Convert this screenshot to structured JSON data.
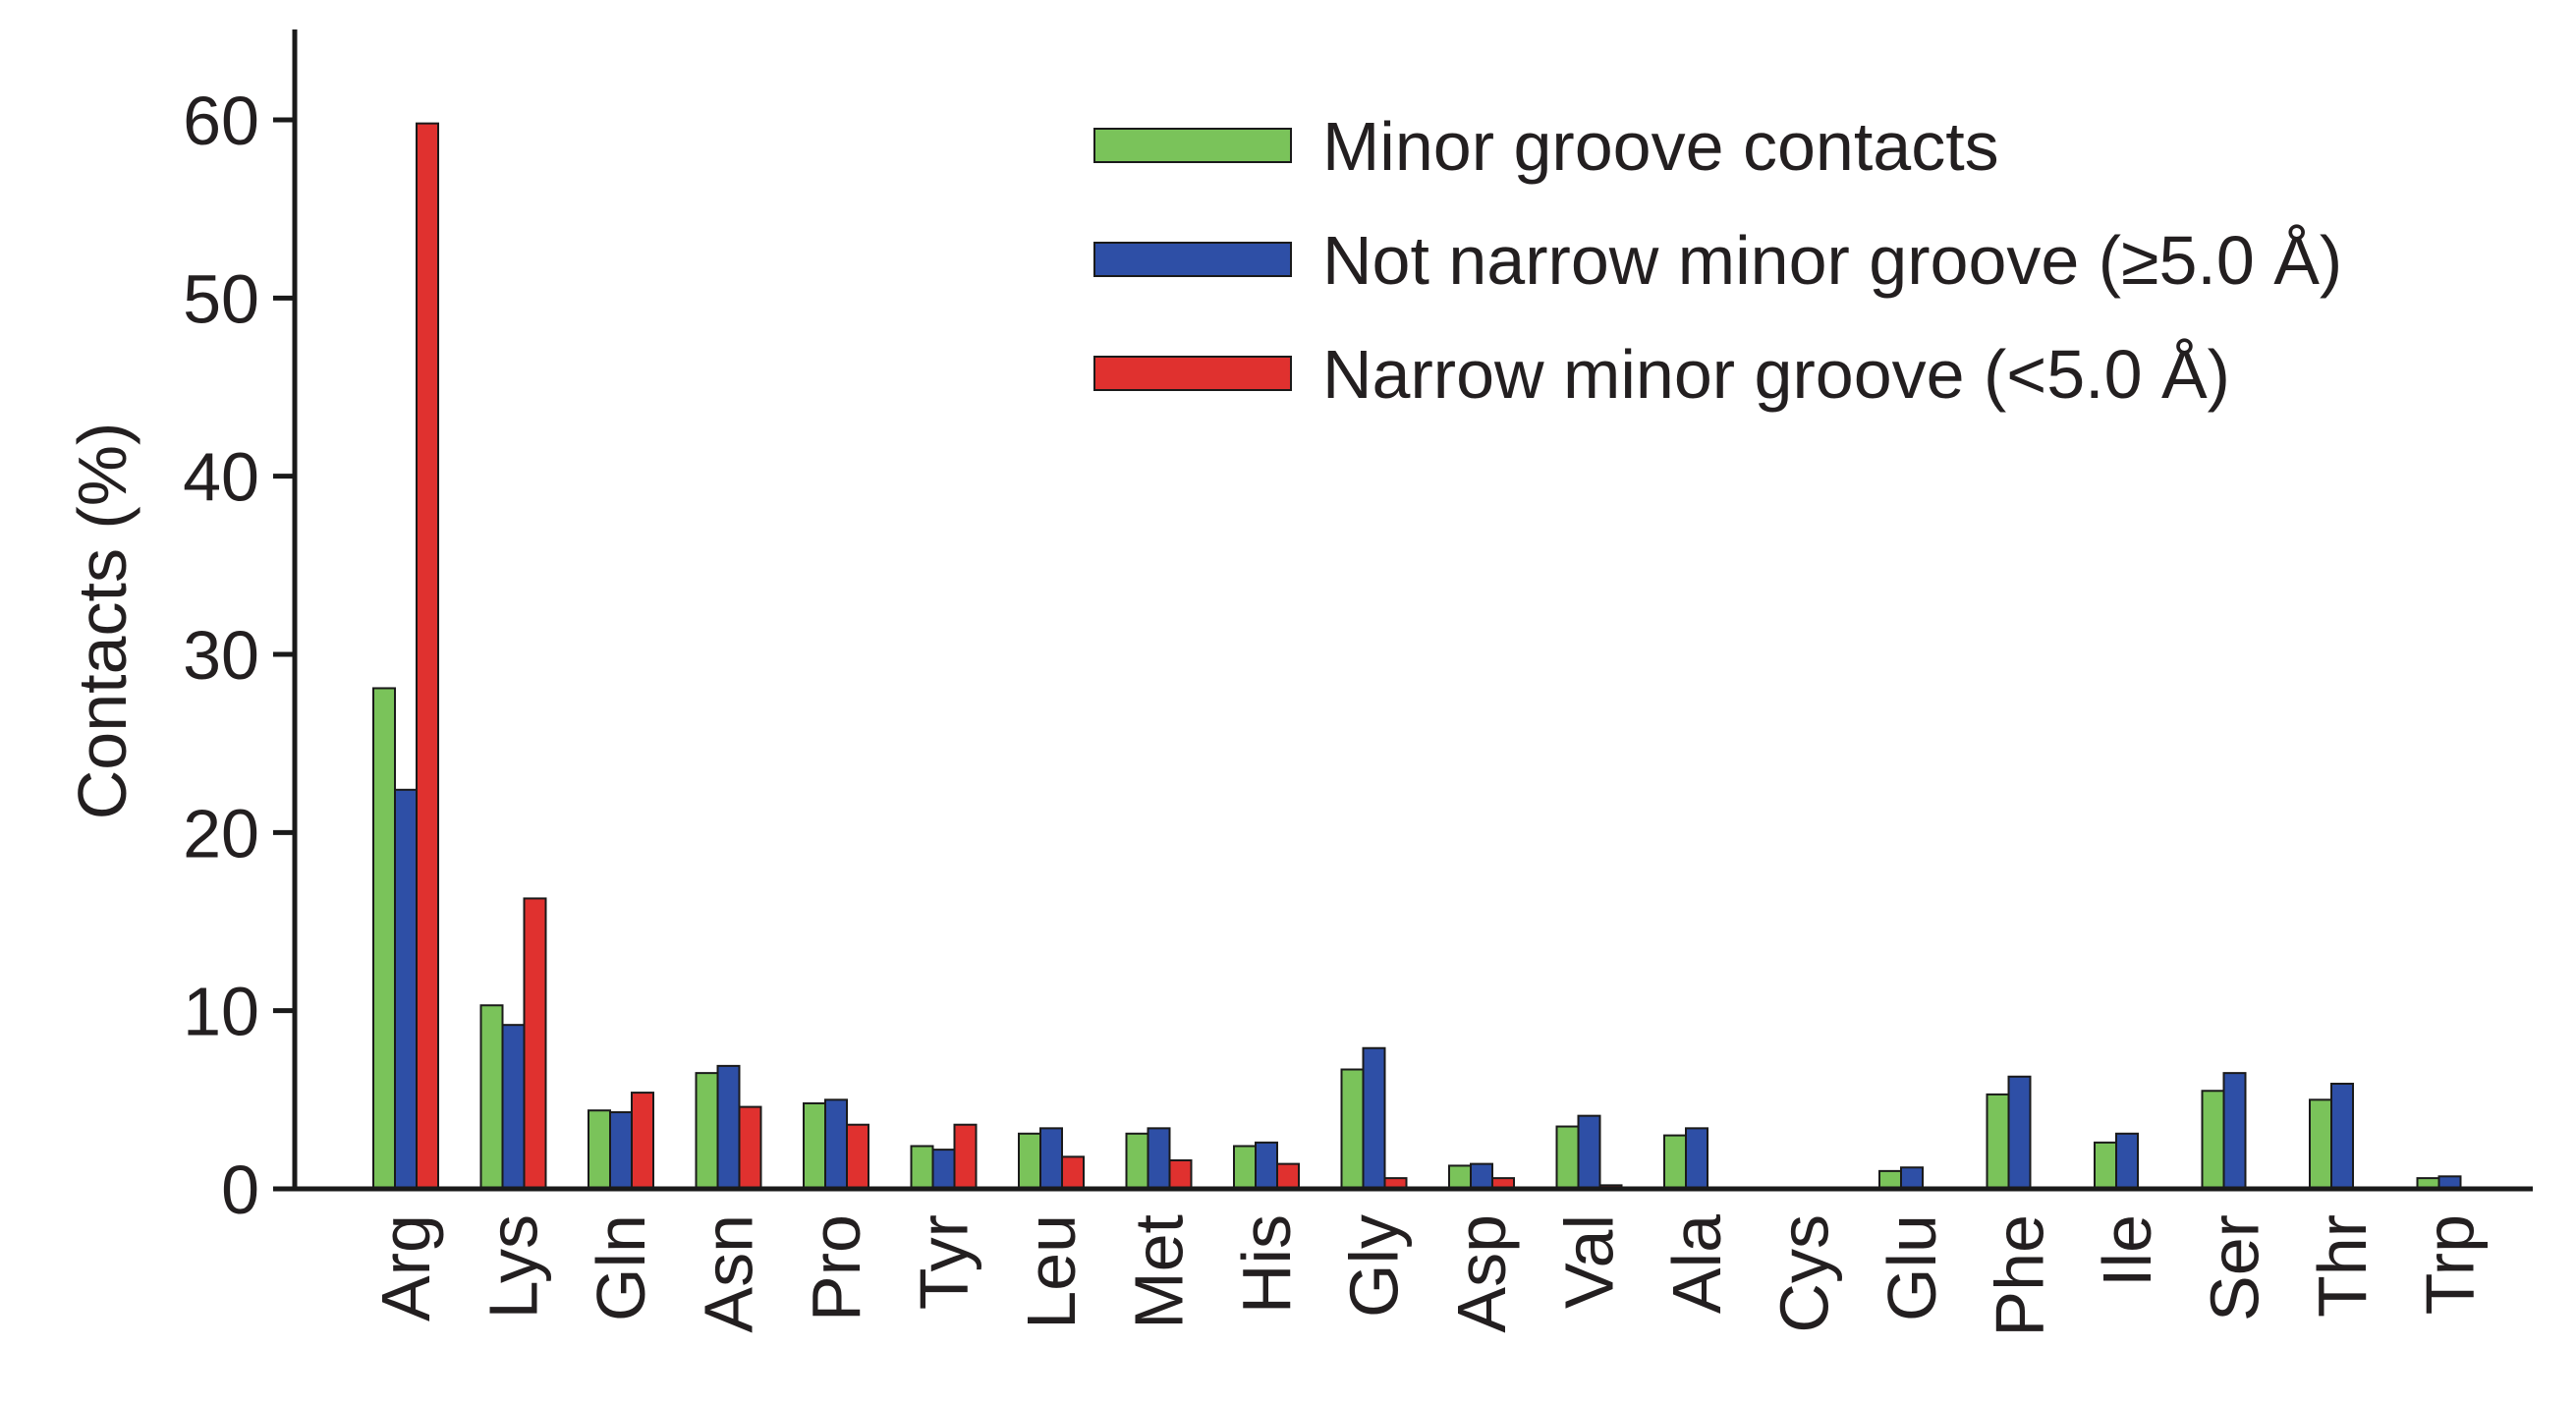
{
  "chart_data": {
    "type": "bar",
    "title": "",
    "xlabel": "",
    "ylabel": "Contacts (%)",
    "ylim": [
      0,
      65
    ],
    "yticks": [
      0,
      10,
      20,
      30,
      40,
      50,
      60
    ],
    "grid": false,
    "legend_position": "top-right",
    "categories": [
      "Arg",
      "Lys",
      "Gln",
      "Asn",
      "Pro",
      "Tyr",
      "Leu",
      "Met",
      "His",
      "Gly",
      "Asp",
      "Val",
      "Ala",
      "Cys",
      "Glu",
      "Phe",
      "Ile",
      "Ser",
      "Thr",
      "Trp"
    ],
    "series": [
      {
        "name": "Minor groove contacts",
        "color": "#7ac35a",
        "values": [
          28.1,
          10.3,
          4.4,
          6.5,
          4.8,
          2.4,
          3.1,
          3.1,
          2.4,
          6.7,
          1.3,
          3.5,
          3.0,
          0.0,
          1.0,
          5.3,
          2.6,
          5.5,
          5.0,
          0.6
        ]
      },
      {
        "name": "Not narrow minor groove (≥5.0 Å)",
        "color": "#2e4fa6",
        "values": [
          22.4,
          9.2,
          4.3,
          6.9,
          5.0,
          2.2,
          3.4,
          3.4,
          2.6,
          7.9,
          1.4,
          4.1,
          3.4,
          0.0,
          1.2,
          6.3,
          3.1,
          6.5,
          5.9,
          0.7
        ]
      },
      {
        "name": "Narrow minor groove (<5.0 Å)",
        "color": "#e0312f",
        "values": [
          59.8,
          16.3,
          5.4,
          4.6,
          3.6,
          3.6,
          1.8,
          1.6,
          1.4,
          0.6,
          0.6,
          0.2,
          0.0,
          0.0,
          0.0,
          0.0,
          0.0,
          0.0,
          0.0,
          0.0
        ]
      }
    ]
  }
}
